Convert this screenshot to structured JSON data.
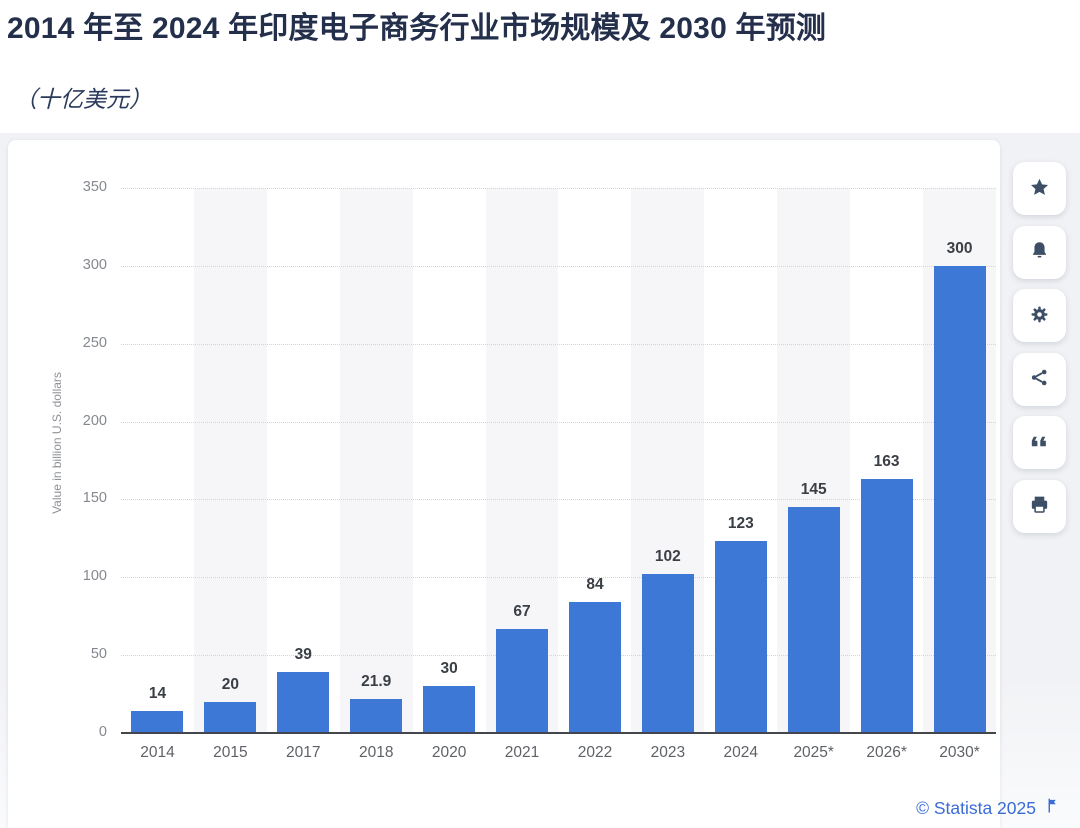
{
  "header": {
    "title": "2014 年至 2024 年印度电子商务行业市场规模及 2030 年预测",
    "subtitle": "（十亿美元）"
  },
  "chart_data": {
    "type": "bar",
    "title": "2014 年至 2024 年印度电子商务行业市场规模及 2030 年预测（十亿美元）",
    "categories": [
      "2014",
      "2015",
      "2017",
      "2018",
      "2020",
      "2021",
      "2022",
      "2023",
      "2024",
      "2025*",
      "2026*",
      "2030*"
    ],
    "values": [
      14,
      20,
      39,
      21.9,
      30,
      67,
      84,
      102,
      123,
      145,
      163,
      300
    ],
    "data_labels": [
      "14",
      "20",
      "39",
      "21.9",
      "30",
      "67",
      "84",
      "102",
      "123",
      "145",
      "163",
      "300"
    ],
    "xlabel": "",
    "ylabel": "Value in billion U.S. dollars",
    "ylim": [
      0,
      350
    ],
    "yticks": [
      0,
      50,
      100,
      150,
      200,
      250,
      300,
      350
    ],
    "grid": "horizontal-dotted",
    "legend": "none",
    "plot_bands": "alternating vertical stripes on every second category",
    "bar_color": "#3E78D6",
    "band_color": "#f6f6f8"
  },
  "toolbar": {
    "buttons": [
      {
        "name": "favorite",
        "icon": "star-icon"
      },
      {
        "name": "alert",
        "icon": "bell-icon"
      },
      {
        "name": "settings",
        "icon": "gear-icon"
      },
      {
        "name": "share",
        "icon": "share-icon"
      },
      {
        "name": "cite",
        "icon": "quote-icon"
      },
      {
        "name": "print",
        "icon": "printer-icon"
      }
    ]
  },
  "footer": {
    "copyright": "© Statista 2025",
    "flag_icon": "flag-icon"
  },
  "colors": {
    "title_navy": "#232f4b",
    "statista_blue": "#3b6bd5",
    "icon_slate": "#3d4f66",
    "backdrop_gray": "#f1f2f5"
  }
}
